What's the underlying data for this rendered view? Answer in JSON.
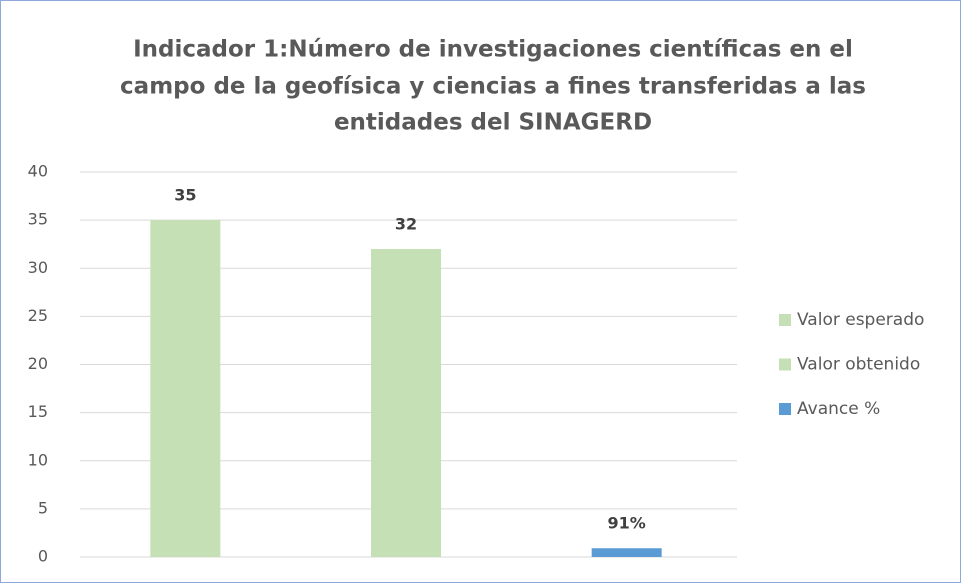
{
  "chart_data": {
    "type": "bar",
    "title": [
      "Indicador 1:Número de investigaciones científicas en el",
      "campo de la geofísica y ciencias a fines transferidas  a las",
      "entidades del SINAGERD"
    ],
    "categories": [
      null,
      null,
      null
    ],
    "series": [
      {
        "name": "Valor esperado",
        "color": "#c5e0b4",
        "values": [
          35,
          null,
          null
        ],
        "value_labels": [
          "35",
          null,
          null
        ]
      },
      {
        "name": "Valor obtenido",
        "color": "#c5e0b4",
        "values": [
          null,
          32,
          null
        ],
        "value_labels": [
          null,
          "32",
          null
        ]
      },
      {
        "name": "Avance %",
        "color": "#5b9bd5",
        "values": [
          null,
          null,
          0.91
        ],
        "value_labels": [
          null,
          null,
          "91%"
        ]
      }
    ],
    "ylim": [
      0,
      40
    ],
    "yticks": [
      0,
      5,
      10,
      15,
      20,
      25,
      30,
      35,
      40
    ],
    "grid": true,
    "legend": "right"
  }
}
